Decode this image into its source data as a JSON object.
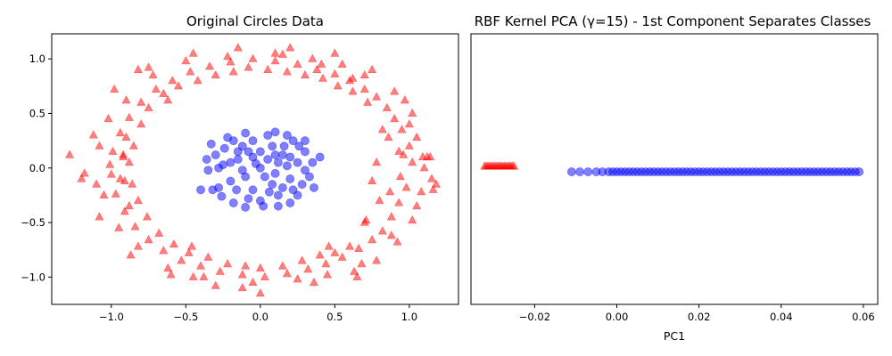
{
  "colors": {
    "class0": "#ff0000",
    "class1": "#0000ff"
  },
  "chart_data": [
    {
      "type": "scatter",
      "title": "Original Circles Data",
      "xlabel": "",
      "ylabel": "",
      "xlim": [
        -1.4,
        1.33
      ],
      "ylim": [
        -1.25,
        1.23
      ],
      "xticks": [
        -1.0,
        -0.5,
        0.0,
        0.5,
        1.0
      ],
      "xtick_labels": [
        "−1.0",
        "−0.5",
        "0.0",
        "0.5",
        "1.0"
      ],
      "yticks": [
        -1.0,
        -0.5,
        0.0,
        0.5,
        1.0
      ],
      "ytick_labels": [
        "−1.0",
        "−0.5",
        "0.0",
        "0.5",
        "1.0"
      ],
      "grid": false,
      "series": [
        {
          "marker": "triangle",
          "color": "#ff0000",
          "alpha": 0.5,
          "points": [
            [
              1.02,
              0.05
            ],
            [
              1.0,
              0.2
            ],
            [
              0.98,
              -0.18
            ],
            [
              0.95,
              0.35
            ],
            [
              0.93,
              -0.32
            ],
            [
              0.9,
              0.45
            ],
            [
              0.88,
              -0.45
            ],
            [
              0.85,
              0.55
            ],
            [
              0.82,
              -0.58
            ],
            [
              0.78,
              0.65
            ],
            [
              0.75,
              -0.66
            ],
            [
              0.7,
              0.72
            ],
            [
              0.66,
              -0.74
            ],
            [
              0.6,
              0.8
            ],
            [
              0.55,
              -0.82
            ],
            [
              0.5,
              0.86
            ],
            [
              0.44,
              -0.88
            ],
            [
              0.38,
              0.9
            ],
            [
              0.32,
              -0.93
            ],
            [
              0.25,
              0.95
            ],
            [
              0.18,
              -0.97
            ],
            [
              0.1,
              0.98
            ],
            [
              0.03,
              -1.0
            ],
            [
              -0.05,
              1.0
            ],
            [
              -0.12,
              -0.98
            ],
            [
              -0.2,
              0.97
            ],
            [
              -0.27,
              -0.95
            ],
            [
              -0.34,
              0.93
            ],
            [
              -0.4,
              -0.9
            ],
            [
              -0.47,
              0.88
            ],
            [
              -0.53,
              -0.85
            ],
            [
              -0.59,
              0.8
            ],
            [
              -0.65,
              -0.76
            ],
            [
              -0.7,
              0.72
            ],
            [
              -0.75,
              -0.66
            ],
            [
              -0.8,
              0.6
            ],
            [
              -0.84,
              -0.54
            ],
            [
              -0.88,
              0.46
            ],
            [
              -0.91,
              -0.4
            ],
            [
              -0.94,
              0.32
            ],
            [
              -0.97,
              -0.24
            ],
            [
              -0.99,
              0.15
            ],
            [
              -1.0,
              -0.06
            ],
            [
              -1.01,
              0.03
            ],
            [
              1.1,
              0.0
            ],
            [
              1.15,
              -0.1
            ],
            [
              1.18,
              -0.15
            ],
            [
              1.12,
              0.1
            ],
            [
              1.05,
              -0.35
            ],
            [
              0.97,
              0.62
            ],
            [
              0.92,
              -0.68
            ],
            [
              0.75,
              0.9
            ],
            [
              0.63,
              -0.95
            ],
            [
              0.5,
              1.05
            ],
            [
              0.36,
              -1.05
            ],
            [
              0.2,
              1.1
            ],
            [
              0.0,
              -1.15
            ],
            [
              -0.15,
              1.1
            ],
            [
              -0.3,
              -1.08
            ],
            [
              -0.45,
              1.05
            ],
            [
              -0.6,
              -0.98
            ],
            [
              -0.75,
              0.92
            ],
            [
              -0.87,
              -0.8
            ],
            [
              -0.98,
              0.72
            ],
            [
              -1.08,
              -0.45
            ],
            [
              -1.12,
              0.3
            ],
            [
              -1.18,
              -0.05
            ],
            [
              -1.28,
              0.12
            ],
            [
              0.82,
              0.35
            ],
            [
              0.8,
              -0.3
            ],
            [
              0.78,
              0.05
            ],
            [
              0.75,
              -0.12
            ],
            [
              0.72,
              0.6
            ],
            [
              0.7,
              -0.5
            ],
            [
              0.62,
              0.7
            ],
            [
              0.6,
              -0.72
            ],
            [
              0.52,
              0.75
            ],
            [
              0.5,
              -0.78
            ],
            [
              0.42,
              0.82
            ],
            [
              0.4,
              -0.8
            ],
            [
              0.3,
              0.85
            ],
            [
              0.28,
              -0.85
            ],
            [
              0.18,
              0.88
            ],
            [
              0.15,
              -0.9
            ],
            [
              0.05,
              0.9
            ],
            [
              0.0,
              -0.92
            ],
            [
              -0.08,
              0.92
            ],
            [
              -0.1,
              -0.9
            ],
            [
              -0.18,
              0.88
            ],
            [
              -0.22,
              -0.88
            ],
            [
              -0.3,
              0.85
            ],
            [
              -0.35,
              -0.82
            ],
            [
              -0.42,
              0.8
            ],
            [
              -0.48,
              -0.78
            ],
            [
              -0.55,
              0.75
            ],
            [
              -0.58,
              -0.7
            ],
            [
              -0.65,
              0.68
            ],
            [
              -0.68,
              -0.6
            ],
            [
              -0.75,
              0.55
            ],
            [
              -0.76,
              -0.45
            ],
            [
              -0.8,
              0.4
            ],
            [
              -0.82,
              -0.3
            ],
            [
              -0.85,
              0.2
            ],
            [
              -0.86,
              -0.15
            ],
            [
              -0.88,
              0.05
            ],
            [
              1.05,
              0.28
            ],
            [
              1.08,
              -0.22
            ],
            [
              1.0,
              0.4
            ],
            [
              1.02,
              -0.48
            ],
            [
              0.9,
              0.7
            ],
            [
              0.88,
              -0.62
            ],
            [
              0.7,
              0.85
            ],
            [
              0.68,
              -0.88
            ],
            [
              0.55,
              0.95
            ],
            [
              0.45,
              -0.98
            ],
            [
              0.35,
              1.0
            ],
            [
              0.25,
              -1.02
            ],
            [
              0.1,
              1.05
            ],
            [
              -0.05,
              -1.05
            ],
            [
              -0.22,
              1.02
            ],
            [
              -0.38,
              -1.0
            ],
            [
              -0.5,
              0.98
            ],
            [
              -0.62,
              -0.92
            ],
            [
              -0.72,
              0.85
            ],
            [
              -0.82,
              -0.72
            ],
            [
              -0.9,
              0.62
            ],
            [
              -0.95,
              -0.55
            ],
            [
              -1.02,
              0.45
            ],
            [
              -1.05,
              -0.25
            ],
            [
              -1.08,
              0.2
            ],
            [
              -1.1,
              -0.15
            ],
            [
              0.96,
              0.12
            ],
            [
              0.94,
              -0.08
            ],
            [
              0.86,
              0.28
            ],
            [
              0.87,
              -0.22
            ],
            [
              -0.92,
              0.1
            ],
            [
              -0.94,
              -0.1
            ],
            [
              -0.9,
              0.28
            ],
            [
              -0.88,
              -0.35
            ],
            [
              0.62,
              0.82
            ],
            [
              -0.62,
              0.62
            ],
            [
              0.46,
              -0.72
            ],
            [
              -0.46,
              -0.72
            ],
            [
              -1.2,
              -0.1
            ],
            [
              0.93,
              0.15
            ],
            [
              -0.92,
              0.12
            ],
            [
              -0.91,
              -0.12
            ],
            [
              0.71,
              -0.48
            ],
            [
              1.02,
              0.5
            ],
            [
              1.09,
              0.1
            ],
            [
              1.14,
              0.1
            ],
            [
              1.16,
              -0.2
            ],
            [
              0.78,
              -0.85
            ],
            [
              0.41,
              0.95
            ],
            [
              -0.82,
              0.9
            ],
            [
              -0.12,
              -1.1
            ],
            [
              0.15,
              1.04
            ],
            [
              -0.45,
              -1.0
            ],
            [
              0.65,
              -1.0
            ]
          ]
        },
        {
          "marker": "circle",
          "color": "#0000ff",
          "alpha": 0.5,
          "points": [
            [
              0.0,
              0.0
            ],
            [
              0.05,
              0.08
            ],
            [
              -0.05,
              0.1
            ],
            [
              0.1,
              -0.05
            ],
            [
              -0.1,
              -0.08
            ],
            [
              0.15,
              0.12
            ],
            [
              -0.15,
              0.15
            ],
            [
              0.2,
              -0.1
            ],
            [
              -0.2,
              -0.12
            ],
            [
              0.25,
              0.05
            ],
            [
              -0.25,
              0.03
            ],
            [
              0.3,
              0.15
            ],
            [
              -0.3,
              0.12
            ],
            [
              0.28,
              -0.15
            ],
            [
              -0.28,
              -0.18
            ],
            [
              0.22,
              0.25
            ],
            [
              -0.18,
              0.25
            ],
            [
              0.12,
              -0.25
            ],
            [
              -0.08,
              -0.28
            ],
            [
              0.05,
              0.3
            ],
            [
              0.0,
              -0.3
            ],
            [
              0.35,
              0.05
            ],
            [
              -0.35,
              -0.02
            ],
            [
              0.18,
              0.3
            ],
            [
              -0.22,
              0.28
            ],
            [
              0.25,
              -0.25
            ],
            [
              -0.26,
              -0.26
            ],
            [
              0.33,
              -0.08
            ],
            [
              -0.33,
              0.22
            ],
            [
              0.08,
              -0.15
            ],
            [
              -0.12,
              0.2
            ],
            [
              0.15,
              -0.18
            ],
            [
              0.08,
              0.2
            ],
            [
              -0.05,
              -0.2
            ],
            [
              0.2,
              0.1
            ],
            [
              -0.2,
              0.05
            ],
            [
              0.12,
              0.05
            ],
            [
              -0.12,
              -0.02
            ],
            [
              0.03,
              -0.08
            ],
            [
              -0.03,
              0.04
            ],
            [
              0.3,
              0.25
            ],
            [
              -0.32,
              -0.2
            ],
            [
              -0.4,
              -0.2
            ],
            [
              0.4,
              0.1
            ],
            [
              0.1,
              0.33
            ],
            [
              -0.1,
              0.32
            ],
            [
              0.02,
              -0.35
            ],
            [
              -0.18,
              -0.32
            ],
            [
              0.2,
              -0.32
            ],
            [
              0.26,
              0.2
            ],
            [
              -0.36,
              0.08
            ],
            [
              0.36,
              -0.18
            ],
            [
              -0.05,
              0.25
            ],
            [
              0.16,
              0.2
            ],
            [
              -0.16,
              -0.2
            ],
            [
              0.06,
              -0.22
            ],
            [
              -0.24,
              0.18
            ],
            [
              0.3,
              -0.02
            ],
            [
              -0.28,
              0.0
            ],
            [
              0.12,
              -0.35
            ],
            [
              -0.1,
              -0.36
            ],
            [
              0.18,
              0.02
            ],
            [
              -0.08,
              0.15
            ],
            [
              0.22,
              -0.2
            ],
            [
              0.0,
              0.15
            ],
            [
              -0.15,
              0.08
            ],
            [
              0.1,
              0.12
            ]
          ]
        }
      ]
    },
    {
      "type": "scatter",
      "title": "RBF Kernel PCA (γ=15) - 1st Component Separates Classes",
      "xlabel": "PC1",
      "ylabel": "",
      "xlim": [
        -0.0355,
        0.0635
      ],
      "ylim": [
        -1,
        1
      ],
      "xticks": [
        -0.02,
        0.0,
        0.02,
        0.04,
        0.06
      ],
      "xtick_labels": [
        "−0.02",
        "0.00",
        "0.02",
        "0.04",
        "0.06"
      ],
      "yticks": [],
      "grid": false,
      "series": [
        {
          "marker": "triangle",
          "color": "#ff0000",
          "alpha": 0.5,
          "y": 0.02,
          "x": [
            -0.0322,
            -0.0318,
            -0.0314,
            -0.031,
            -0.0306,
            -0.0302,
            -0.0298,
            -0.0294,
            -0.029,
            -0.0286,
            -0.0282,
            -0.0278,
            -0.0274,
            -0.027,
            -0.0266,
            -0.0262,
            -0.0258,
            -0.0254,
            -0.025
          ]
        },
        {
          "marker": "circle",
          "color": "#0000ff",
          "alpha": 0.5,
          "y": -0.02,
          "x": [
            -0.011,
            -0.009,
            -0.007,
            -0.005,
            -0.0035,
            -0.002,
            -0.001,
            0.0,
            0.001,
            0.002,
            0.003,
            0.004,
            0.005,
            0.006,
            0.007,
            0.008,
            0.009,
            0.01,
            0.011,
            0.012,
            0.013,
            0.014,
            0.015,
            0.016,
            0.017,
            0.018,
            0.019,
            0.02,
            0.021,
            0.022,
            0.023,
            0.024,
            0.025,
            0.026,
            0.027,
            0.028,
            0.029,
            0.03,
            0.031,
            0.032,
            0.033,
            0.034,
            0.035,
            0.036,
            0.037,
            0.038,
            0.039,
            0.04,
            0.041,
            0.042,
            0.043,
            0.044,
            0.045,
            0.046,
            0.047,
            0.048,
            0.049,
            0.05,
            0.051,
            0.052,
            0.053,
            0.054,
            0.055,
            0.056,
            0.057,
            0.058,
            0.059
          ]
        }
      ]
    }
  ]
}
